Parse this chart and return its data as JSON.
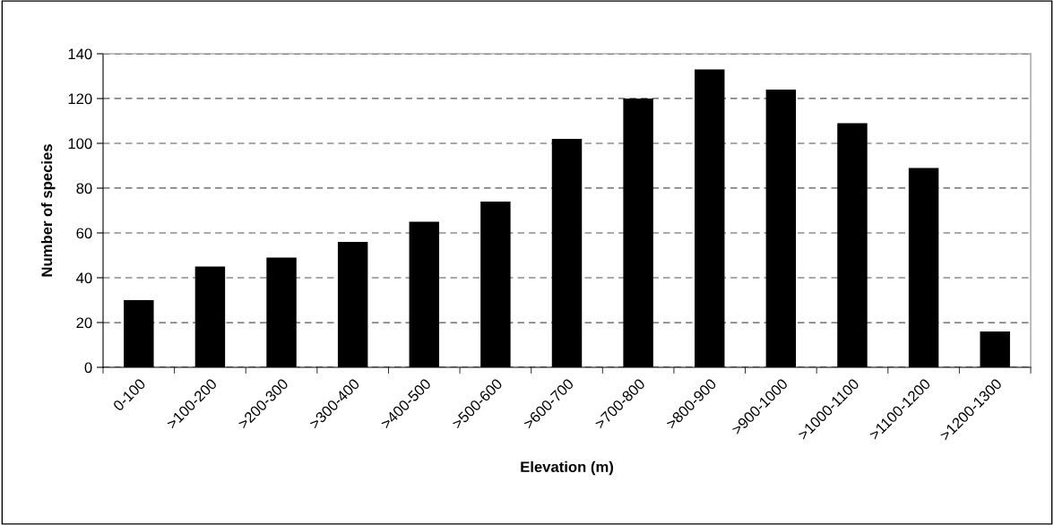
{
  "chart_data": {
    "type": "bar",
    "xlabel": "Elevation (m)",
    "ylabel": "Number of species",
    "categories": [
      "0-100",
      ">100-200",
      ">200-300",
      ">300-400",
      ">400-500",
      ">500-600",
      ">600-700",
      ">700-800",
      ">800-900",
      ">900-1000",
      ">1000-1100",
      ">1100-1200",
      ">1200-1300"
    ],
    "values": [
      30,
      45,
      49,
      56,
      65,
      74,
      102,
      120,
      133,
      124,
      109,
      89,
      16
    ],
    "color": "#000000",
    "ylim": [
      0,
      140
    ],
    "yticks": [
      0,
      20,
      40,
      60,
      80,
      100,
      120,
      140
    ],
    "grid": "y"
  }
}
